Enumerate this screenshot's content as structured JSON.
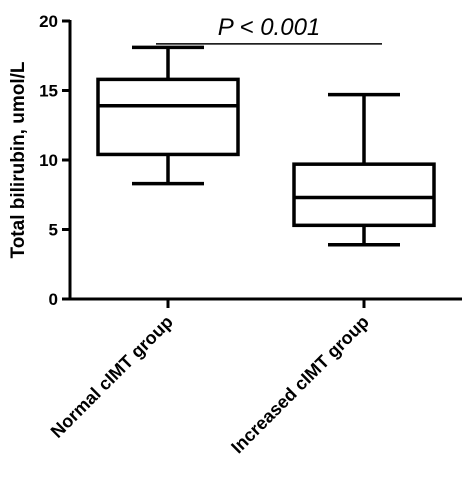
{
  "chart_data": {
    "type": "box",
    "ylabel": "Total bilirubin, umol/L",
    "ylim": [
      0,
      20
    ],
    "yticks": [
      0,
      5,
      10,
      15,
      20
    ],
    "categories": [
      "Normal cIMT group",
      "Increased cIMT group"
    ],
    "boxes": [
      {
        "category": "Normal cIMT group",
        "min": 8.3,
        "q1": 10.4,
        "median": 13.9,
        "q3": 15.8,
        "max": 18.1
      },
      {
        "category": "Increased cIMT group",
        "min": 3.9,
        "q1": 5.3,
        "median": 7.3,
        "q3": 9.7,
        "max": 14.7
      }
    ],
    "annotation": {
      "text": "P < 0.001",
      "y": 18.5
    },
    "grid": false,
    "legend": "none"
  }
}
